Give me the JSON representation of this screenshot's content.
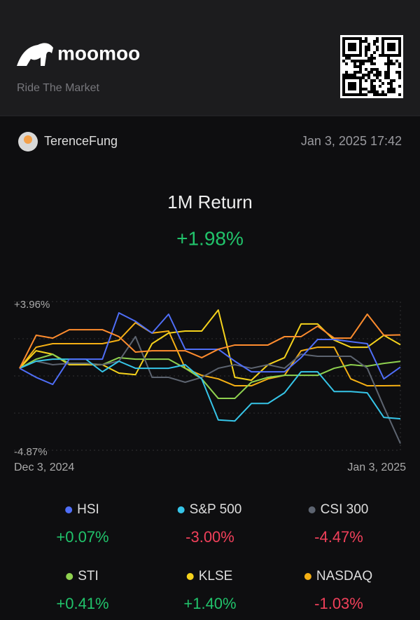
{
  "header": {
    "brand": "moomoo",
    "tagline": "Ride The Market"
  },
  "user": {
    "name": "TerenceFung",
    "timestamp": "Jan 3, 2025 17:42"
  },
  "chart_data": {
    "type": "line",
    "title": "1M Return",
    "subtitle": "+1.98%",
    "x_labels": [
      "Dec 3, 2024",
      "Jan 3, 2025"
    ],
    "ylim": [
      -4.87,
      3.96
    ],
    "yticks": [
      {
        "value": 3.96,
        "label": "+3.96%"
      },
      {
        "value": -4.87,
        "label": "-4.87%"
      }
    ],
    "grid": true,
    "series": [
      {
        "color": "#ff8c2e",
        "values": [
          0,
          1.96,
          1.79,
          2.29,
          2.29,
          2.29,
          1.88,
          0.96,
          1.04,
          1.04,
          1.04,
          0.63,
          1.13,
          1.38,
          1.38,
          1.38,
          1.88,
          1.88,
          2.5,
          1.79,
          1.79,
          3.21,
          1.96,
          1.98
        ]
      },
      {
        "name": "HSI",
        "color": "#4f6ef7",
        "value_label": "+0.07%",
        "values": [
          0,
          -0.54,
          -0.96,
          0.54,
          0.54,
          0.54,
          3.29,
          2.79,
          2.09,
          3.21,
          1.13,
          1.13,
          1.13,
          0.42,
          -0.21,
          -0.21,
          -0.21,
          0.63,
          1.71,
          1.71,
          1.58,
          1.46,
          -0.63,
          0.07
        ]
      },
      {
        "name": "S&P 500",
        "color": "#36c5e8",
        "value_label": "-3.00%",
        "values": [
          0,
          0.42,
          0.54,
          0.54,
          0.54,
          -0.21,
          0.42,
          0,
          0,
          0,
          0.21,
          -0.63,
          -3.07,
          -3.13,
          -2.09,
          -2.09,
          -1.46,
          -0.21,
          -0.21,
          -1.38,
          -1.38,
          -1.46,
          -2.92,
          -3.0
        ]
      },
      {
        "name": "CSI 300",
        "color": "#5d6470",
        "value_label": "-4.47%",
        "values": [
          0,
          0.42,
          0.21,
          0.29,
          0.29,
          0.21,
          0.42,
          1.88,
          -0.54,
          -0.54,
          -0.83,
          -0.54,
          0,
          0.21,
          0,
          0.21,
          0,
          0.83,
          0.71,
          0.71,
          0.71,
          0,
          -2.29,
          -4.47
        ]
      },
      {
        "name": "STI",
        "color": "#8fd14f",
        "value_label": "+0.41%",
        "values": [
          0,
          0.54,
          0.83,
          0.29,
          0.29,
          0.21,
          0.63,
          0.54,
          0.54,
          0.54,
          0,
          -0.63,
          -1.79,
          -1.79,
          -0.83,
          -0.54,
          -0.42,
          -0.42,
          -0.42,
          0,
          0.21,
          0.13,
          0.29,
          0.41
        ]
      },
      {
        "name": "KLSE",
        "color": "#f5d21c",
        "value_label": "+1.40%",
        "values": [
          0,
          1.04,
          0.83,
          0.21,
          0.21,
          0.21,
          -0.29,
          -0.38,
          1.46,
          2.09,
          2.21,
          2.21,
          3.46,
          -0.54,
          -0.71,
          0.21,
          0.63,
          2.63,
          2.63,
          1.67,
          1.25,
          1.25,
          1.96,
          1.4
        ]
      },
      {
        "name": "NASDAQ",
        "color": "#f5b014",
        "value_label": "-1.03%",
        "values": [
          0,
          1.25,
          1.46,
          1.46,
          1.46,
          1.46,
          1.67,
          2.71,
          2.09,
          2.21,
          0,
          -0.42,
          -0.63,
          -1.04,
          -1.04,
          -0.63,
          -0.42,
          1.04,
          1.25,
          1.25,
          -0.63,
          -1.04,
          -1.04,
          -1.03
        ]
      }
    ]
  }
}
